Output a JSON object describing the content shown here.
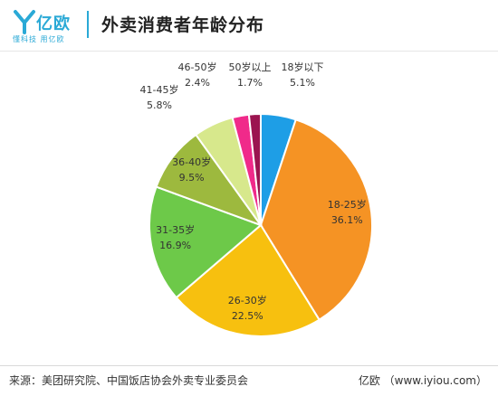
{
  "header": {
    "logo_text": "亿欧",
    "logo_subtitle": "懂科技 用亿欧",
    "title": "外卖消费者年龄分布"
  },
  "chart_data": {
    "type": "pie",
    "title": "外卖消费者年龄分布",
    "unit": "%",
    "slices": [
      {
        "label": "18岁以下",
        "value": 5.1,
        "value_text": "5.1%",
        "color": "#1e9ee6",
        "label_placement": "outside"
      },
      {
        "label": "18-25岁",
        "value": 36.1,
        "value_text": "36.1%",
        "color": "#f59324",
        "label_placement": "inside"
      },
      {
        "label": "26-30岁",
        "value": 22.5,
        "value_text": "22.5%",
        "color": "#f7c00f",
        "label_placement": "inside"
      },
      {
        "label": "31-35岁",
        "value": 16.9,
        "value_text": "16.9%",
        "color": "#6dc949",
        "label_placement": "inside"
      },
      {
        "label": "36-40岁",
        "value": 9.5,
        "value_text": "9.5%",
        "color": "#9db93e",
        "label_placement": "inside"
      },
      {
        "label": "41-45岁",
        "value": 5.8,
        "value_text": "5.8%",
        "color": "#d7e88c",
        "label_placement": "outside"
      },
      {
        "label": "46-50岁",
        "value": 2.4,
        "value_text": "2.4%",
        "color": "#f02a8a",
        "label_placement": "outside"
      },
      {
        "label": "50岁以上",
        "value": 1.7,
        "value_text": "1.7%",
        "color": "#9b1450",
        "label_placement": "outside"
      }
    ]
  },
  "footer": {
    "source": "来源：美团研究院、中国饭店协会外卖专业委员会",
    "brand": "亿欧 （www.iyiou.com）"
  }
}
